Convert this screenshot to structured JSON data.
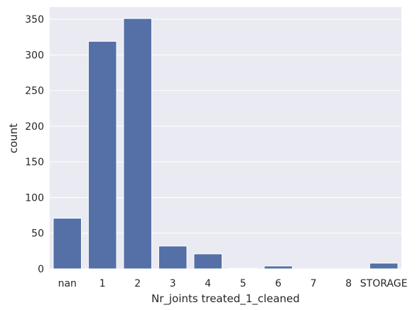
{
  "chart_data": {
    "type": "bar",
    "title": "",
    "xlabel": "Nr_joints treated_1_cleaned",
    "ylabel": "count",
    "categories": [
      "nan",
      "1",
      "2",
      "3",
      "4",
      "5",
      "6",
      "7",
      "8",
      "STORAGE"
    ],
    "values": [
      71,
      319,
      351,
      32,
      21,
      1,
      4,
      0,
      0,
      8
    ],
    "ylim": [
      0,
      367
    ],
    "yticks": [
      0,
      50,
      100,
      150,
      200,
      250,
      300,
      350
    ],
    "grid": true,
    "colors": {
      "bar": "#5470a6",
      "plot_background": "#eaeaf2",
      "grid": "#ffffff",
      "text": "#262626"
    }
  }
}
